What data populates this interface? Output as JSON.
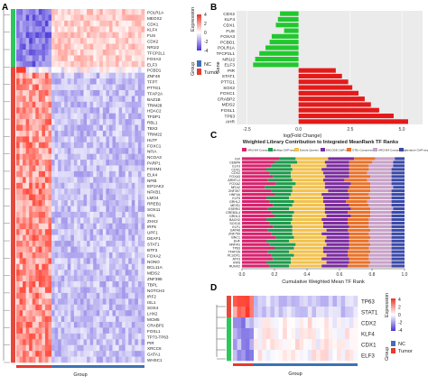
{
  "panels": {
    "A": "A",
    "B": "B",
    "C": "C",
    "D": "D"
  },
  "chart_data": [
    {
      "panel": "A",
      "type": "heatmap",
      "title": "",
      "xlabel": "Group",
      "rows": [
        "POLR1A",
        "MEOX2",
        "CDX1",
        "KLF4",
        "FUS",
        "CDX2",
        "NR1I2",
        "TFCP2L1",
        "FOXA3",
        "ELF3",
        "PCBD1",
        "ZNF48",
        "TFPT",
        "PTTG1",
        "TFAP2A",
        "BAZ1B",
        "TRIM28",
        "HDAC2",
        "TFDP1",
        "RBL1",
        "TBX3",
        "TRIM22",
        "HLTF",
        "FOXC1",
        "NFIA",
        "NCOA3",
        "PARP1",
        "FOXM1",
        "ELK4",
        "NFIB",
        "EIF2AK2",
        "NFKB1",
        "LMO4",
        "RREB1",
        "SOX11",
        "MAL",
        "ZHX2",
        "IRF5",
        "UPF1",
        "DEAF1",
        "STAT1",
        "BTF3",
        "FOXA2",
        "NONO",
        "BCL11A",
        "MEIS2",
        "ZNF395",
        "TBPL",
        "NOTCH3",
        "IRF2",
        "ISL1",
        "SOX4",
        "LHX2",
        "MCM5",
        "CRABP2",
        "FOSL1",
        "TP73-TP63",
        "PIR",
        "XRCC6",
        "GATA1",
        "WHSC1"
      ],
      "groups": {
        "title": "Group",
        "entries": [
          "NC",
          "Tumor"
        ],
        "colors": [
          "#3d72b4",
          "#e33b2e"
        ]
      },
      "legend": {
        "title": "Expression",
        "ticks": [
          "4",
          "2",
          "0",
          "-2",
          "-4"
        ],
        "colors": [
          "#e8352b",
          "#ffffff",
          "#4a34d8"
        ]
      }
    },
    {
      "panel": "B",
      "type": "bar",
      "orientation": "horizontal",
      "categories": [
        "CDX2",
        "KLF4",
        "CDX1",
        "FUS",
        "FOXA3",
        "PCBD1",
        "POLR1A",
        "TFCP2L1",
        "NR1I2",
        "ELF3",
        "PIR",
        "STAT1",
        "PTTG1",
        "SOX2",
        "FOXC1",
        "CRABP2",
        "MEIS2",
        "FOSL1",
        "TP63",
        "AHR"
      ],
      "values": [
        -0.9,
        -1.0,
        -1.1,
        -0.7,
        -1.3,
        -1.4,
        -1.6,
        -1.9,
        -2.1,
        -2.2,
        1.8,
        2.1,
        2.4,
        2.6,
        2.9,
        3.2,
        3.5,
        3.9,
        4.6,
        5.3
      ],
      "colors": {
        "negative": "#22c72e",
        "positive": "#e41a1a"
      },
      "xlabel": "log(Fold Change)",
      "ylabel": "Gene",
      "xticks": [
        "-2.5",
        "0.0",
        "2.5",
        "5.0"
      ],
      "xlim": [
        -3,
        6
      ]
    },
    {
      "panel": "C",
      "type": "bar",
      "stacked": true,
      "orientation": "horizontal",
      "title": "Weighted Library Contribution to Integrated MeanRank TF Ranks",
      "xlabel": "Cumulative Weighted Mean TF Rank",
      "xticks": [
        "0.0",
        "0.2",
        "0.4",
        "0.6",
        "0.8",
        "1.0"
      ],
      "xlim": [
        0,
        1.0
      ],
      "legend": [
        "ARCHS4 Coexpression",
        "ReMap ChIP-seq",
        "Enrichr Queries",
        "ENCODE ChIP-seq",
        "GTEx Coexpression",
        "ARCHS4 Coexpression",
        "Literature ChIP-seq"
      ],
      "legend_colors": [
        "#d6246e",
        "#1f9a4c",
        "#f2c14e",
        "#7b2d9e",
        "#e8722a",
        "#c8a2c8",
        "#3b4aa8"
      ],
      "categories": [
        "ISX",
        "CEBPA",
        "ELF3",
        "CDX1",
        "CDX2",
        "FOXA3",
        "ARNTL2",
        "FOXA2",
        "NR1I2",
        "ZNF397",
        "HNF4A",
        "KLF5",
        "GRHL2",
        "MEIS1",
        "ESRRG",
        "CREB3L4",
        "GRHL3",
        "BACH2",
        "SOX15",
        "ELF1",
        "GATA6",
        "ZNF750",
        "BNC1",
        "EHF",
        "HNF4G",
        "TP63",
        "TFAP2A",
        "PLSCR1",
        "ATF3",
        "IRF6",
        "RUNX2"
      ],
      "series_values": [
        [
          0.23,
          0.1,
          0.2,
          0.16,
          0.13,
          0.12,
          0.06
        ],
        [
          0.2,
          0.14,
          0.17,
          0.15,
          0.14,
          0.13,
          0.07
        ],
        [
          0.18,
          0.12,
          0.22,
          0.14,
          0.12,
          0.15,
          0.07
        ],
        [
          0.15,
          0.16,
          0.18,
          0.17,
          0.12,
          0.14,
          0.08
        ],
        [
          0.17,
          0.13,
          0.2,
          0.16,
          0.11,
          0.15,
          0.08
        ],
        [
          0.19,
          0.11,
          0.21,
          0.15,
          0.13,
          0.13,
          0.08
        ],
        [
          0.16,
          0.15,
          0.19,
          0.13,
          0.14,
          0.15,
          0.08
        ],
        [
          0.21,
          0.12,
          0.18,
          0.16,
          0.12,
          0.13,
          0.08
        ],
        [
          0.14,
          0.17,
          0.2,
          0.15,
          0.13,
          0.14,
          0.07
        ],
        [
          0.18,
          0.13,
          0.22,
          0.12,
          0.14,
          0.13,
          0.08
        ],
        [
          0.2,
          0.1,
          0.19,
          0.17,
          0.12,
          0.14,
          0.08
        ],
        [
          0.15,
          0.14,
          0.21,
          0.16,
          0.13,
          0.13,
          0.08
        ],
        [
          0.17,
          0.15,
          0.18,
          0.14,
          0.13,
          0.15,
          0.08
        ],
        [
          0.19,
          0.12,
          0.2,
          0.15,
          0.12,
          0.14,
          0.08
        ],
        [
          0.16,
          0.13,
          0.22,
          0.16,
          0.12,
          0.14,
          0.07
        ],
        [
          0.18,
          0.14,
          0.19,
          0.14,
          0.14,
          0.13,
          0.08
        ],
        [
          0.2,
          0.11,
          0.21,
          0.15,
          0.12,
          0.13,
          0.08
        ],
        [
          0.15,
          0.16,
          0.18,
          0.16,
          0.13,
          0.14,
          0.08
        ],
        [
          0.17,
          0.13,
          0.2,
          0.15,
          0.13,
          0.14,
          0.08
        ],
        [
          0.19,
          0.12,
          0.19,
          0.16,
          0.12,
          0.14,
          0.08
        ],
        [
          0.16,
          0.15,
          0.21,
          0.13,
          0.14,
          0.13,
          0.08
        ],
        [
          0.18,
          0.13,
          0.18,
          0.17,
          0.12,
          0.14,
          0.08
        ],
        [
          0.21,
          0.11,
          0.2,
          0.14,
          0.13,
          0.13,
          0.08
        ],
        [
          0.15,
          0.14,
          0.22,
          0.15,
          0.12,
          0.14,
          0.08
        ],
        [
          0.17,
          0.16,
          0.19,
          0.14,
          0.13,
          0.13,
          0.08
        ],
        [
          0.2,
          0.12,
          0.18,
          0.16,
          0.12,
          0.14,
          0.08
        ],
        [
          0.16,
          0.13,
          0.21,
          0.15,
          0.14,
          0.13,
          0.08
        ],
        [
          0.18,
          0.14,
          0.2,
          0.13,
          0.13,
          0.14,
          0.08
        ],
        [
          0.19,
          0.11,
          0.19,
          0.17,
          0.12,
          0.14,
          0.08
        ],
        [
          0.15,
          0.15,
          0.22,
          0.14,
          0.13,
          0.13,
          0.08
        ],
        [
          0.17,
          0.12,
          0.2,
          0.16,
          0.13,
          0.14,
          0.08
        ]
      ]
    },
    {
      "panel": "D",
      "type": "heatmap",
      "xlabel": "Group",
      "rows": [
        "TP63",
        "STAT1",
        "CDX2",
        "KLF4",
        "CDX1",
        "ELF3"
      ],
      "groups": {
        "title": "Group",
        "entries": [
          "NC",
          "Tumor"
        ],
        "colors": [
          "#3d72b4",
          "#e33b2e"
        ]
      },
      "legend": {
        "title": "Expression",
        "ticks": [
          "4",
          "2",
          "0",
          "-2",
          "-4"
        ],
        "colors": [
          "#e8352b",
          "#ffffff",
          "#4a34d8"
        ]
      }
    }
  ]
}
